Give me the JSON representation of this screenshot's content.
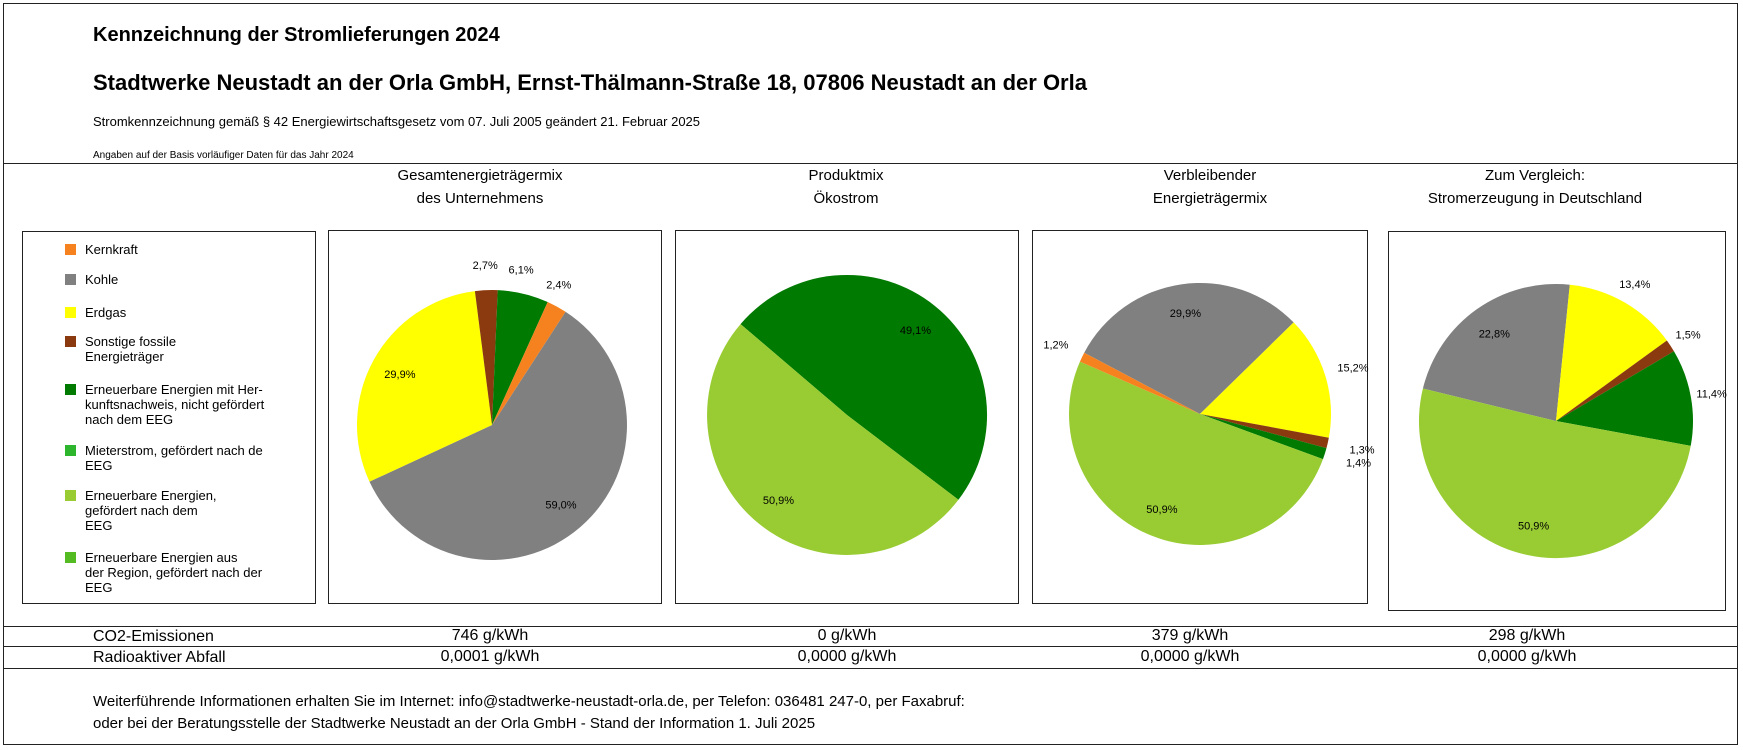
{
  "header": {
    "title": "Kennzeichnung der Stromlieferungen 2024",
    "company": "Stadtwerke Neustadt an der Orla GmbH, Ernst-Thälmann-Straße 18, 07806 Neustadt an der Orla",
    "law_note": "Stromkennzeichnung gemäß § 42 Energiewirtschaftsgesetz vom 07. Juli 2005 geändert 21. Februar 2025",
    "data_note": "Angaben auf der Basis vorläufiger Daten für das Jahr 2024"
  },
  "columns": [
    {
      "line1": "Gesamtenergieträgermix",
      "line2": "des Unternehmens"
    },
    {
      "line1": "Produktmix",
      "line2": "Ökostrom"
    },
    {
      "line1": "Verbleibender",
      "line2": "Energieträgermix"
    },
    {
      "line1": "Zum Vergleich:",
      "line2": "Stromerzeugung in Deutschland"
    }
  ],
  "legend": [
    {
      "line1": "Kernkraft",
      "line2": "",
      "line3": "",
      "color": "#f5821f"
    },
    {
      "line1": "Kohle",
      "line2": "",
      "line3": "",
      "color": "#808080"
    },
    {
      "line1": "Erdgas",
      "line2": "",
      "line3": "",
      "color": "#ffff00"
    },
    {
      "line1": "Sonstige fossile",
      "line2": "Energieträger",
      "line3": "",
      "color": "#8b3a0f"
    },
    {
      "line1": "Erneuerbare Energien mit Her-",
      "line2": "kunftsnachweis, nicht gefördert",
      "line3": "nach dem EEG",
      "color": "#007a00"
    },
    {
      "line1": "Mieterstrom, gefördert nach de",
      "line2": "EEG",
      "line3": "",
      "color": "#2db52d"
    },
    {
      "line1": "Erneuerbare Energien,",
      "line2": "gefördert nach dem",
      "line3": "EEG",
      "color": "#99cc33"
    },
    {
      "line1": "Erneuerbare Energien aus",
      "line2": "der Region, gefördert nach der",
      "line3": "EEG",
      "color": "#55bb22"
    }
  ],
  "chart_data": [
    {
      "type": "pie",
      "title": "Gesamtenergieträgermix des Unternehmens",
      "slices": [
        {
          "category": "Kohle",
          "value": 59.0,
          "label": "59,0%",
          "color": "#808080"
        },
        {
          "category": "Erdgas",
          "value": 29.9,
          "label": "29,9%",
          "color": "#ffff00"
        },
        {
          "category": "Sonstige fossile Energieträger",
          "value": 2.7,
          "label": "2,7%",
          "color": "#8b3a0f"
        },
        {
          "category": "Erneuerbare Energien mit Herkunftsnachweis, nicht gefördert nach dem EEG",
          "value": 6.1,
          "label": "6,1%",
          "color": "#007a00"
        },
        {
          "category": "Kernkraft",
          "value": 2.4,
          "label": "2,4%",
          "color": "#f5821f"
        }
      ]
    },
    {
      "type": "pie",
      "title": "Produktmix Ökostrom",
      "slices": [
        {
          "category": "Erneuerbare Energien mit Herkunftsnachweis, nicht gefördert nach dem EEG",
          "value": 49.1,
          "label": "49,1%",
          "color": "#007a00"
        },
        {
          "category": "Erneuerbare Energien, gefördert nach dem EEG",
          "value": 50.9,
          "label": "50,9%",
          "color": "#99cc33"
        }
      ]
    },
    {
      "type": "pie",
      "title": "Verbleibender Energieträgermix",
      "slices": [
        {
          "category": "Kohle",
          "value": 29.9,
          "label": "29,9%",
          "color": "#808080"
        },
        {
          "category": "Erdgas",
          "value": 15.2,
          "label": "15,2%",
          "color": "#ffff00"
        },
        {
          "category": "Sonstige fossile Energieträger",
          "value": 1.3,
          "label": "1,3%",
          "color": "#8b3a0f"
        },
        {
          "category": "Erneuerbare Energien mit Herkunftsnachweis, nicht gefördert nach dem EEG",
          "value": 1.4,
          "label": "1,4%",
          "color": "#007a00"
        },
        {
          "category": "Erneuerbare Energien, gefördert nach dem EEG",
          "value": 50.9,
          "label": "50,9%",
          "color": "#99cc33"
        },
        {
          "category": "Kernkraft",
          "value": 1.2,
          "label": "1,2%",
          "color": "#f5821f"
        }
      ]
    },
    {
      "type": "pie",
      "title": "Zum Vergleich: Stromerzeugung in Deutschland",
      "slices": [
        {
          "category": "Kohle",
          "value": 22.8,
          "label": "22,8%",
          "color": "#808080"
        },
        {
          "category": "Erdgas",
          "value": 13.4,
          "label": "13,4%",
          "color": "#ffff00"
        },
        {
          "category": "Sonstige fossile Energieträger",
          "value": 1.5,
          "label": "1,5%",
          "color": "#8b3a0f"
        },
        {
          "category": "Erneuerbare Energien mit Herkunftsnachweis, nicht gefördert nach dem EEG",
          "value": 11.4,
          "label": "11,4%",
          "color": "#007a00"
        },
        {
          "category": "Erneuerbare Energien, gefördert nach dem EEG",
          "value": 50.9,
          "label": "50,9%",
          "color": "#99cc33"
        }
      ]
    }
  ],
  "rows": {
    "co2": {
      "label": "CO2-Emissionen",
      "values": [
        "746 g/kWh",
        "0 g/kWh",
        "379 g/kWh",
        "298 g/kWh"
      ]
    },
    "waste": {
      "label": "Radioaktiver Abfall",
      "values": [
        "0,0001 g/kWh",
        "0,0000 g/kWh",
        "0,0000 g/kWh",
        "0,0000 g/kWh"
      ]
    }
  },
  "footer": {
    "line1": "Weiterführende Informationen erhalten Sie im Internet: info@stadtwerke-neustadt-orla.de, per Telefon: 036481 247-0, per Faxabruf:",
    "line2": "oder bei der Beratungsstelle der Stadtwerke Neustadt an der Orla GmbH - Stand der Information 1. Juli 2025"
  }
}
